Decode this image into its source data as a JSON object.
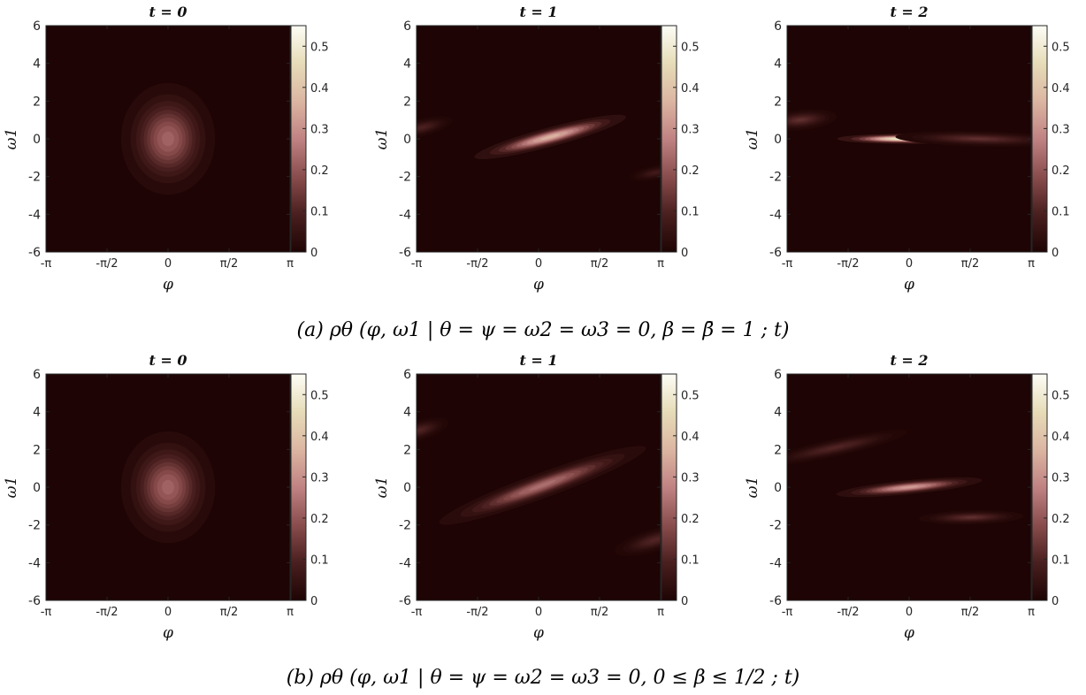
{
  "colors": {
    "colormap": [
      "#1e0404",
      "#4a1f1f",
      "#8a4d4d",
      "#c08282",
      "#dcb6a2",
      "#e6dcb8",
      "#fdfdf6"
    ],
    "background": "#ffffff"
  },
  "chart_data": [
    {
      "type": "heatmap",
      "row": "a",
      "title": "t = 0",
      "xlabel": "φ",
      "ylabel": "ω1",
      "xlim": [
        -3.14159,
        3.14159
      ],
      "ylim": [
        -6,
        6
      ],
      "xticks": [
        -3.14159,
        -1.5708,
        0,
        1.5708,
        3.14159
      ],
      "xticklabels": [
        "-π",
        "-π/2",
        "0",
        "π/2",
        "π"
      ],
      "yticks": [
        -6,
        -4,
        -2,
        0,
        2,
        4,
        6
      ],
      "yticklabels": [
        "-6",
        "-4",
        "-2",
        "0",
        "2",
        "4",
        "6"
      ],
      "clim": [
        0,
        0.55
      ],
      "cticks": [
        0,
        0.1,
        0.2,
        0.3,
        0.4,
        0.5
      ],
      "cticklabels": [
        "0",
        "0.1",
        "0.2",
        "0.3",
        "0.4",
        "0.5"
      ],
      "blobs": [
        {
          "phi": 0,
          "omega": 0,
          "peak": 0.22,
          "sigma_major": 2.2,
          "sigma_minor": 0.9,
          "slope": 0
        }
      ]
    },
    {
      "type": "heatmap",
      "row": "a",
      "title": "t = 1",
      "xlabel": "φ",
      "ylabel": "ω1",
      "xlim": [
        -3.14159,
        3.14159
      ],
      "ylim": [
        -6,
        6
      ],
      "xticks": [
        -3.14159,
        -1.5708,
        0,
        1.5708,
        3.14159
      ],
      "xticklabels": [
        "-π",
        "-π/2",
        "0",
        "π/2",
        "π"
      ],
      "yticks": [
        -6,
        -4,
        -2,
        0,
        2,
        4,
        6
      ],
      "yticklabels": [
        "-6",
        "-4",
        "-2",
        "0",
        "2",
        "4",
        "6"
      ],
      "clim": [
        0,
        0.55
      ],
      "cticks": [
        0,
        0.1,
        0.2,
        0.3,
        0.4,
        0.5
      ],
      "cticklabels": [
        "0",
        "0.1",
        "0.2",
        "0.3",
        "0.4",
        "0.5"
      ],
      "blobs": [
        {
          "phi": 0.3,
          "omega": 0.1,
          "peak": 0.36,
          "sigma_major": 1.5,
          "sigma_minor": 0.38,
          "slope": 0.55
        },
        {
          "phi": -3.0,
          "omega": 0.6,
          "peak": 0.09,
          "sigma_major": 0.6,
          "sigma_minor": 0.35,
          "slope": 0.5
        },
        {
          "phi": 3.0,
          "omega": -1.8,
          "peak": 0.07,
          "sigma_major": 0.5,
          "sigma_minor": 0.3,
          "slope": 0.4
        }
      ]
    },
    {
      "type": "heatmap",
      "row": "a",
      "title": "t = 2",
      "xlabel": "φ",
      "ylabel": "ω1",
      "xlim": [
        -3.14159,
        3.14159
      ],
      "ylim": [
        -6,
        6
      ],
      "xticks": [
        -3.14159,
        -1.5708,
        0,
        1.5708,
        3.14159
      ],
      "xticklabels": [
        "-π",
        "-π/2",
        "0",
        "π/2",
        "π"
      ],
      "yticks": [
        -6,
        -4,
        -2,
        0,
        2,
        4,
        6
      ],
      "yticklabels": [
        "-6",
        "-4",
        "-2",
        "0",
        "2",
        "4",
        "6"
      ],
      "clim": [
        0,
        0.55
      ],
      "cticks": [
        0,
        0.1,
        0.2,
        0.3,
        0.4,
        0.5
      ],
      "cticklabels": [
        "0",
        "0.1",
        "0.2",
        "0.3",
        "0.4",
        "0.5"
      ],
      "blobs": [
        {
          "phi": -0.1,
          "omega": 0.0,
          "peak": 0.52,
          "sigma_major": 1.3,
          "sigma_minor": 0.2,
          "slope": 0.0
        },
        {
          "phi": 1.8,
          "omega": 0.0,
          "peak": 0.12,
          "sigma_major": 1.6,
          "sigma_minor": 0.3,
          "slope": -0.05
        },
        {
          "phi": -2.8,
          "omega": 1.0,
          "peak": 0.12,
          "sigma_major": 0.7,
          "sigma_minor": 0.4,
          "slope": 0.2
        }
      ]
    },
    {
      "type": "heatmap",
      "row": "b",
      "title": "t = 0",
      "xlabel": "φ",
      "ylabel": "ω1",
      "xlim": [
        -3.14159,
        3.14159
      ],
      "ylim": [
        -6,
        6
      ],
      "xticks": [
        -3.14159,
        -1.5708,
        0,
        1.5708,
        3.14159
      ],
      "xticklabels": [
        "-π",
        "-π/2",
        "0",
        "π/2",
        "π"
      ],
      "yticks": [
        -6,
        -4,
        -2,
        0,
        2,
        4,
        6
      ],
      "yticklabels": [
        "-6",
        "-4",
        "-2",
        "0",
        "2",
        "4",
        "6"
      ],
      "clim": [
        0,
        0.55
      ],
      "cticks": [
        0,
        0.1,
        0.2,
        0.3,
        0.4,
        0.5
      ],
      "cticklabels": [
        "0",
        "0.1",
        "0.2",
        "0.3",
        "0.4",
        "0.5"
      ],
      "blobs": [
        {
          "phi": 0,
          "omega": 0,
          "peak": 0.22,
          "sigma_major": 2.2,
          "sigma_minor": 0.9,
          "slope": 0
        }
      ]
    },
    {
      "type": "heatmap",
      "row": "b",
      "title": "t = 1",
      "xlabel": "φ",
      "ylabel": "ω1",
      "xlim": [
        -3.14159,
        3.14159
      ],
      "ylim": [
        -6,
        6
      ],
      "xticks": [
        -3.14159,
        -1.5708,
        0,
        1.5708,
        3.14159
      ],
      "xticklabels": [
        "-π",
        "-π/2",
        "0",
        "π/2",
        "π"
      ],
      "yticks": [
        -6,
        -4,
        -2,
        0,
        2,
        4,
        6
      ],
      "yticklabels": [
        "-6",
        "-4",
        "-2",
        "0",
        "2",
        "4",
        "6"
      ],
      "clim": [
        0,
        0.55
      ],
      "cticks": [
        0,
        0.1,
        0.2,
        0.3,
        0.4,
        0.5
      ],
      "cticklabels": [
        "0",
        "0.1",
        "0.2",
        "0.3",
        "0.4",
        "0.5"
      ],
      "blobs": [
        {
          "phi": 0.1,
          "omega": 0.1,
          "peak": 0.24,
          "sigma_major": 2.1,
          "sigma_minor": 0.5,
          "slope": 0.75
        },
        {
          "phi": -3.1,
          "omega": 3.0,
          "peak": 0.1,
          "sigma_major": 0.6,
          "sigma_minor": 0.4,
          "slope": 0.6
        },
        {
          "phi": 3.0,
          "omega": -2.8,
          "peak": 0.1,
          "sigma_major": 0.8,
          "sigma_minor": 0.45,
          "slope": 0.6
        }
      ]
    },
    {
      "type": "heatmap",
      "row": "b",
      "title": "t = 2",
      "xlabel": "φ",
      "ylabel": "ω1",
      "xlim": [
        -3.14159,
        3.14159
      ],
      "ylim": [
        -6,
        6
      ],
      "xticks": [
        -3.14159,
        -1.5708,
        0,
        1.5708,
        3.14159
      ],
      "xticklabels": [
        "-π",
        "-π/2",
        "0",
        "π/2",
        "π"
      ],
      "yticks": [
        -6,
        -4,
        -2,
        0,
        2,
        4,
        6
      ],
      "yticklabels": [
        "-6",
        "-4",
        "-2",
        "0",
        "2",
        "4",
        "6"
      ],
      "clim": [
        0,
        0.55
      ],
      "cticks": [
        0,
        0.1,
        0.2,
        0.3,
        0.4,
        0.5
      ],
      "cticklabels": [
        "0",
        "0.1",
        "0.2",
        "0.3",
        "0.4",
        "0.5"
      ],
      "blobs": [
        {
          "phi": 0.0,
          "omega": 0.0,
          "peak": 0.32,
          "sigma_major": 1.4,
          "sigma_minor": 0.28,
          "slope": 0.2
        },
        {
          "phi": 1.6,
          "omega": -1.6,
          "peak": 0.12,
          "sigma_major": 1.0,
          "sigma_minor": 0.28,
          "slope": 0.05
        },
        {
          "phi": -1.9,
          "omega": 2.1,
          "peak": 0.1,
          "sigma_major": 1.4,
          "sigma_minor": 0.35,
          "slope": 0.45
        }
      ]
    }
  ],
  "captions": {
    "a": "(a) ρθ (φ, ω1 | θ = ψ = ω2 = ω3 = 0, β = β̄ = 1 ; t)",
    "b": "(b) ρθ (φ, ω1 | θ = ψ = ω2 = ω3 = 0, 0 ≤ β ≤ 1/2 ; t)"
  }
}
